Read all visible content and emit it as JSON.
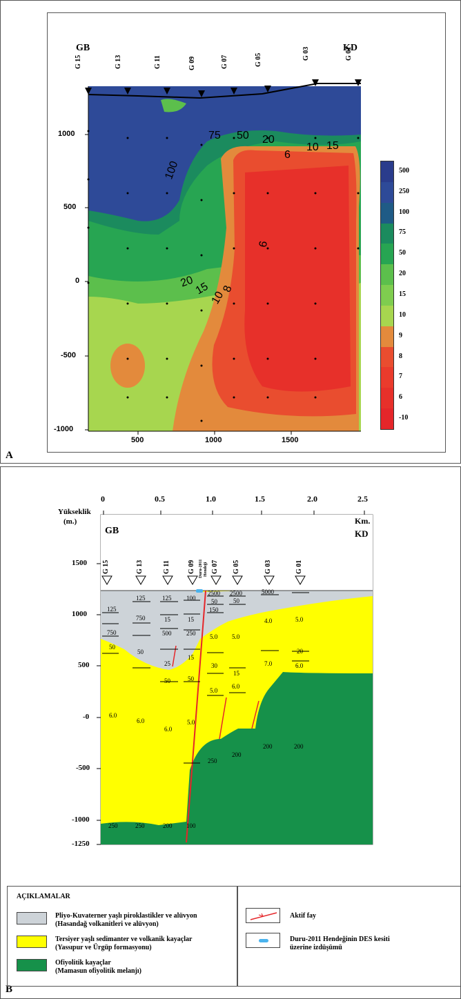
{
  "panel_a": {
    "label": "A",
    "left_dir": "GB",
    "right_dir": "KD",
    "stations": [
      "G 15",
      "G 13",
      "G 11",
      "G 09",
      "G 07",
      "G 05",
      "G 03",
      "G 01"
    ],
    "y_ticks": [
      "1000",
      "500",
      "0",
      "-500",
      "-1000"
    ],
    "x_ticks": [
      "500",
      "1000",
      "1500"
    ],
    "colorbar_labels": [
      "500",
      "250",
      "100",
      "75",
      "50",
      "20",
      "15",
      "10",
      "9",
      "8",
      "7",
      "6",
      "-10"
    ],
    "colorbar_colors": [
      "#2a3c8c",
      "#2e4a98",
      "#1f5b86",
      "#1b8b5e",
      "#27a552",
      "#5cbf4c",
      "#7fcd4f",
      "#a7d64f",
      "#e38a3c",
      "#e94d2f",
      "#ea3b2c",
      "#e7302a",
      "#e5262a"
    ],
    "contour_labels": [
      "75",
      "50",
      "20",
      "10",
      "15",
      "6",
      "100",
      "6",
      "20",
      "15",
      "10",
      "8"
    ]
  },
  "panel_b": {
    "label": "B",
    "km_ticks": [
      "0",
      "0.5",
      "1.0",
      "1.5",
      "2.0",
      "2.5"
    ],
    "km_unit": "Km.",
    "ylabel_line1": "Yükseklik",
    "ylabel_line2": "(m.)",
    "y_ticks": [
      "1500",
      "1000",
      "500",
      "-0",
      "-500",
      "-1000",
      "-1250"
    ],
    "left_dir": "GB",
    "right_dir": "KD",
    "stations": [
      "G 15",
      "G 13",
      "G 11",
      "G 09",
      "G 07",
      "G 05",
      "G 03",
      "G 01"
    ],
    "trench_label_1": "Duru-2011",
    "trench_label_2": "Hendeği",
    "values": {
      "g15": [
        "125",
        "750",
        "50",
        "6.0",
        "250"
      ],
      "g13": [
        "125",
        "750",
        "50",
        "6.0",
        "250"
      ],
      "g11": [
        "125",
        "15",
        "500",
        "25",
        "50",
        "6.0",
        "200"
      ],
      "g09": [
        "100",
        "15",
        "250",
        "15",
        "50",
        "5.0",
        "100"
      ],
      "g07": [
        "2500",
        "50",
        "150",
        "5.0",
        "30",
        "5.0",
        "250"
      ],
      "g05": [
        "2500",
        "50",
        "5.0",
        "15",
        "6.0",
        "200"
      ],
      "g03": [
        "5000",
        "4.0",
        "7.0",
        "200"
      ],
      "g01": [
        "5.0",
        "20",
        "6.0",
        "200"
      ]
    }
  },
  "legend": {
    "title": "AÇIKLAMALAR",
    "items": [
      {
        "line1": "Pliyo-Kuvaterner yaşlı piroklastikler ve alüvyon",
        "line2": "(Hasandağ volkanitleri ve alüvyon)",
        "color": "#cdd3d8"
      },
      {
        "line1": "Tersiyer yaşlı sedimanter ve volkanik kayaçlar",
        "line2": "(Yassıpur ve Ürgüp formasyonu)",
        "color": "#ffff00"
      },
      {
        "line1": "Ofiyolitik kayaçlar",
        "line2": "(Mamasun ofiyolitik melanjı)",
        "color": "#16914a"
      }
    ],
    "fault_label": "Aktif fay",
    "trench_line1": "Duru-2011 Hendeğinin DES kesiti",
    "trench_line2": "üzerine izdüşümü"
  }
}
